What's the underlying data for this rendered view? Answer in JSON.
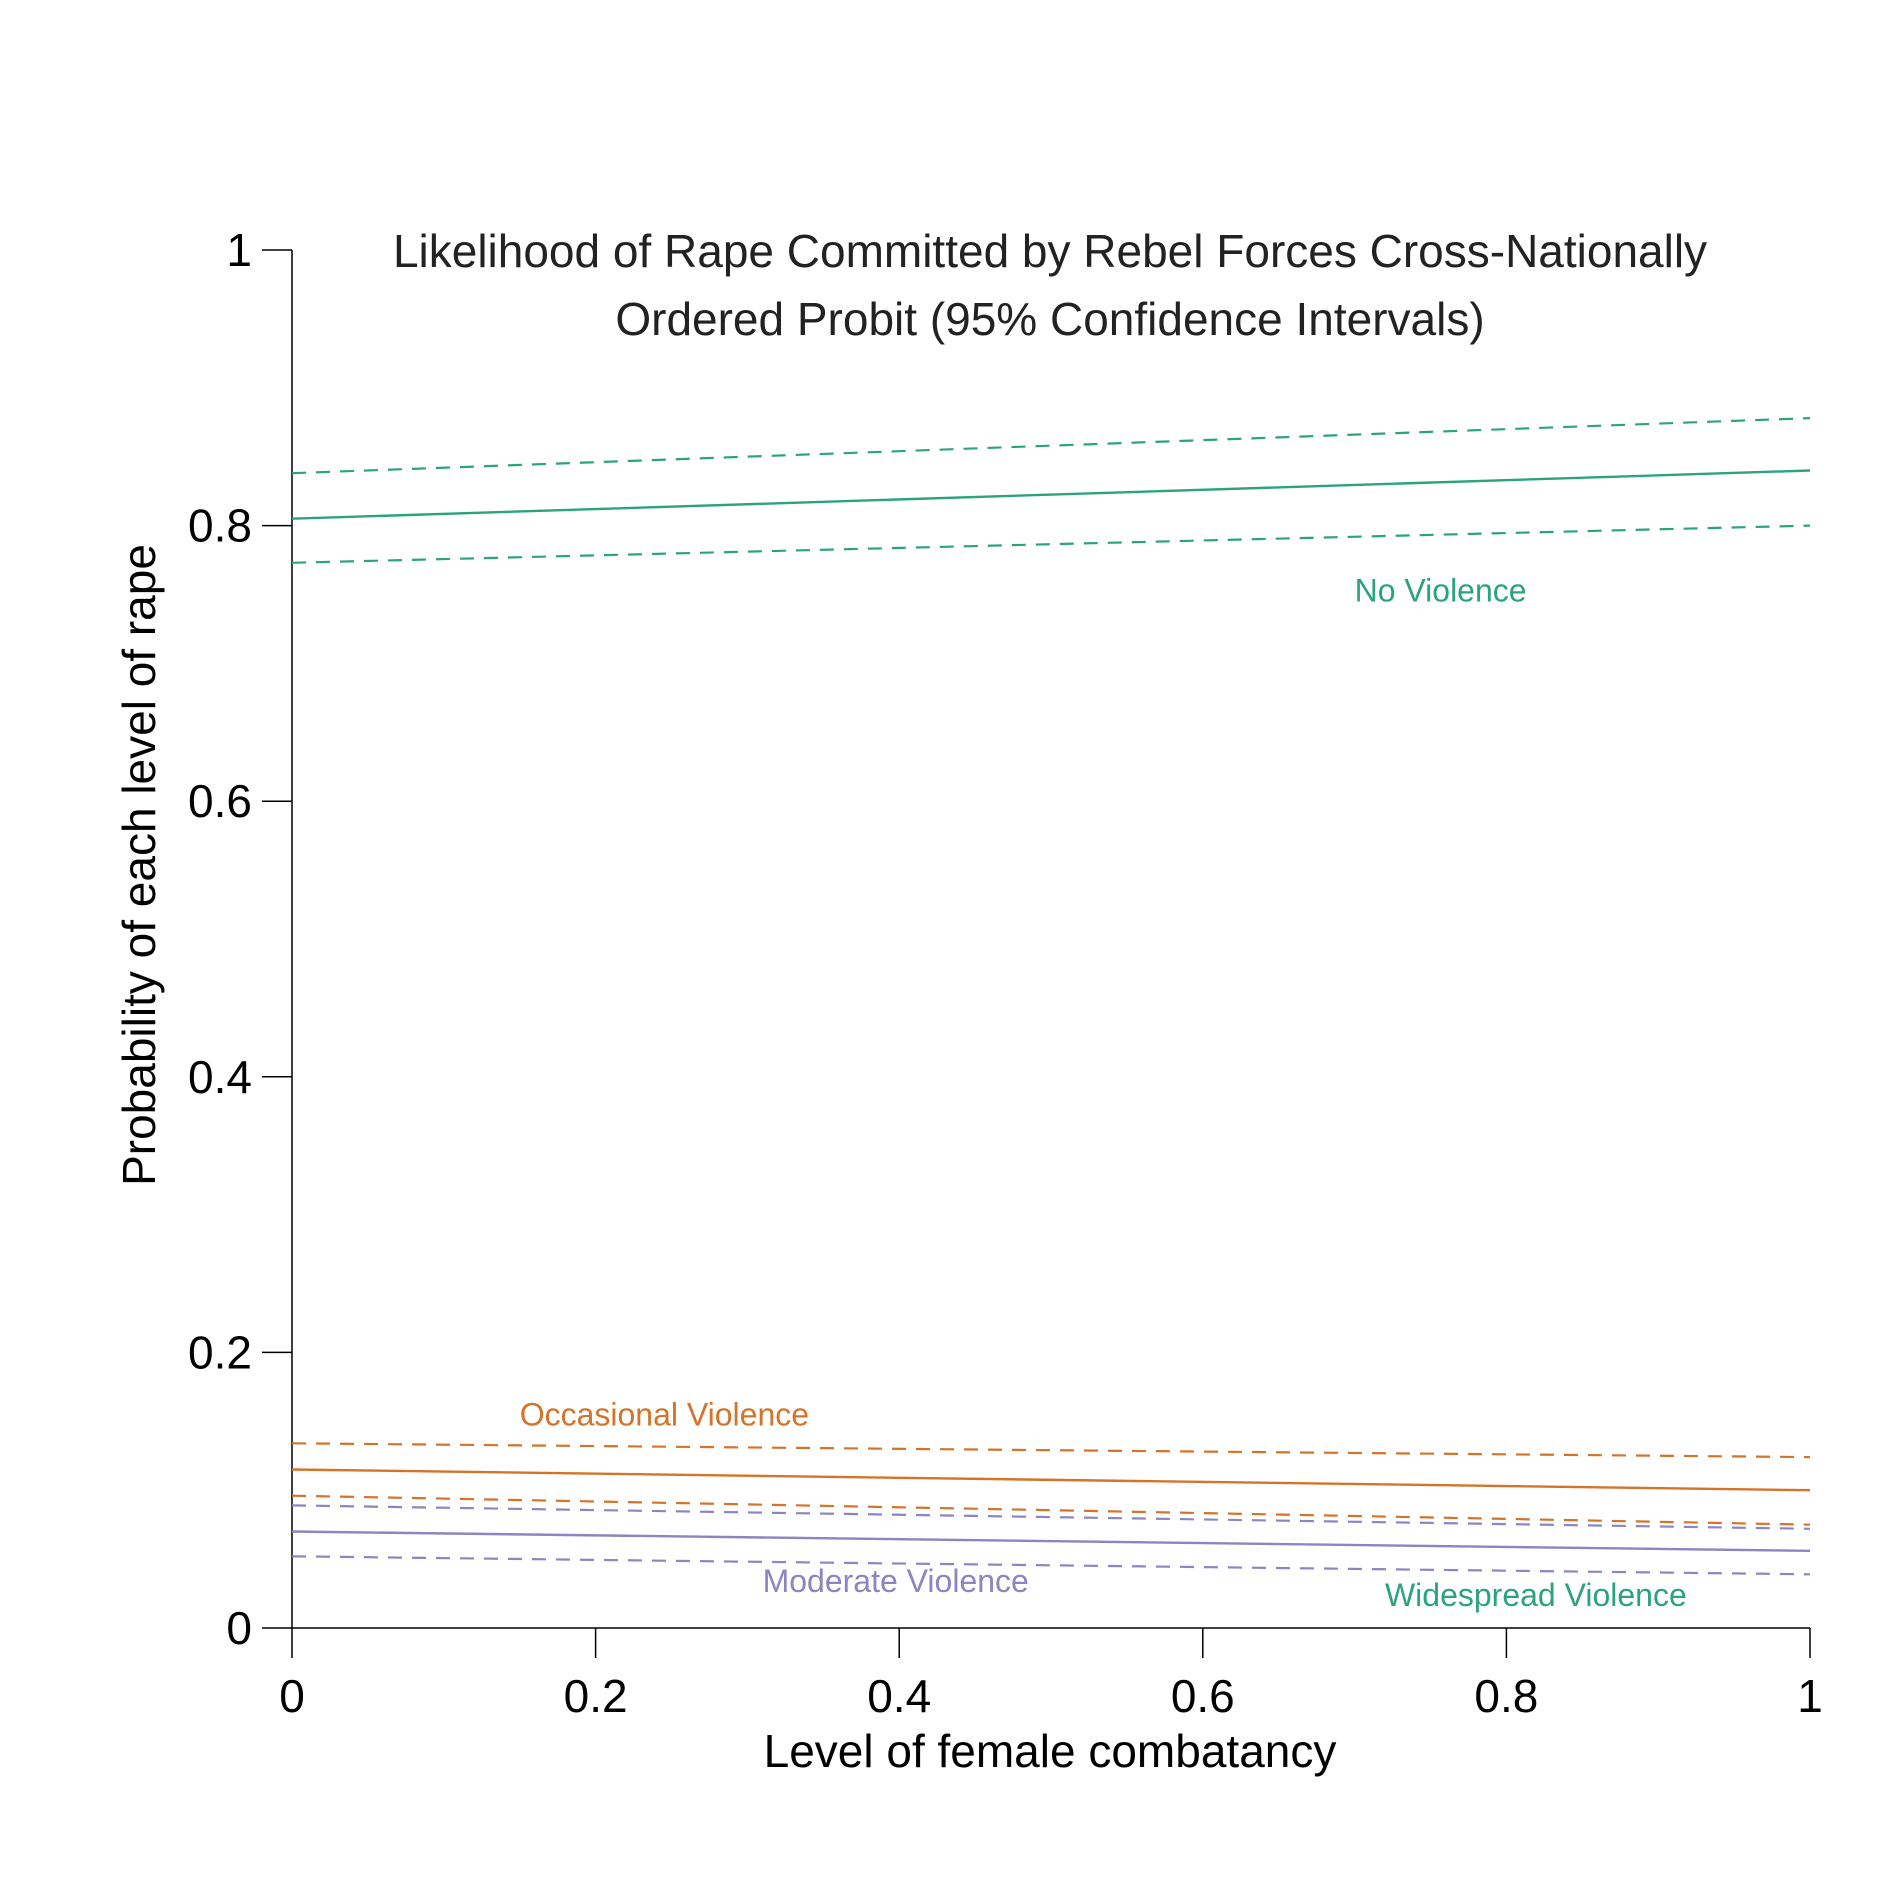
{
  "chart_data": {
    "type": "line",
    "title": [
      "Likelihood of Rape Committed by Rebel Forces Cross-Nationally",
      "Ordered Probit (95% Confidence Intervals)"
    ],
    "xlabel": "Level of female combatancy",
    "ylabel": "Probability of each level of rape",
    "xlim": [
      0,
      1
    ],
    "ylim": [
      0,
      1
    ],
    "xticks": [
      0,
      0.2,
      0.4,
      0.6,
      0.8,
      1
    ],
    "xtick_labels": [
      "0",
      "0.2",
      "0.4",
      "0.6",
      "0.8",
      "1"
    ],
    "yticks": [
      0,
      0.2,
      0.4,
      0.6,
      0.8,
      1
    ],
    "ytick_labels": [
      "0",
      "0.2",
      "0.4",
      "0.6",
      "0.8",
      "1"
    ],
    "grid": false,
    "series": [
      {
        "name": "No Violence",
        "color": "#2ca37f",
        "x": [
          0,
          1
        ],
        "values": [
          0.805,
          0.84
        ],
        "ci_lower": [
          0.773,
          0.8
        ],
        "ci_upper": [
          0.838,
          0.878
        ]
      },
      {
        "name": "Occasional Violence",
        "color": "#d4732a",
        "x": [
          0,
          1
        ],
        "values": [
          0.115,
          0.1
        ],
        "ci_lower": [
          0.096,
          0.075
        ],
        "ci_upper": [
          0.134,
          0.124
        ]
      },
      {
        "name": "Moderate Violence",
        "color": "#8b85c1",
        "x": [
          0,
          1
        ],
        "values": [
          0.07,
          0.056
        ],
        "ci_lower": [
          0.052,
          0.039
        ],
        "ci_upper": [
          0.089,
          0.072
        ]
      }
    ],
    "annotations": [
      {
        "text": "No Violence",
        "x": 0.7,
        "y": 0.745,
        "color": "#2ca37f"
      },
      {
        "text": "Occasional Violence",
        "x": 0.15,
        "y": 0.147,
        "color": "#d4732a"
      },
      {
        "text": "Moderate Violence",
        "x": 0.31,
        "y": 0.026,
        "color": "#8b85c1"
      },
      {
        "text": "Widespread Violence",
        "x": 0.72,
        "y": 0.016,
        "color": "#2ca37f"
      }
    ]
  }
}
